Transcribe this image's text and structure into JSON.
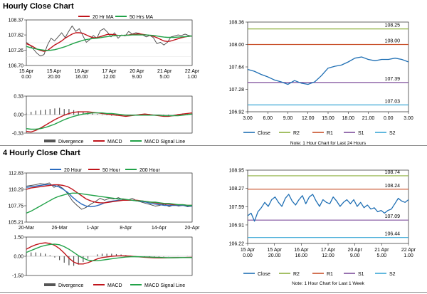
{
  "sections": [
    {
      "title": "Hourly Close Chart"
    },
    {
      "title": "4 Hourly Close Chart"
    }
  ],
  "colors": {
    "close": "#1f6fb4",
    "r2": "#8db03f",
    "r1": "#c8502a",
    "s1": "#7f4f9c",
    "s2": "#3aa7d6",
    "ma_short": "#c0141b",
    "ma_long": "#21a248",
    "ma_extra": "#2a6bbf",
    "divergence": "#555555",
    "macd": "#c0141b",
    "signal": "#21a248"
  },
  "chart_data": [
    {
      "id": "hourly_price",
      "type": "line",
      "legend": [
        "20 Hr MA",
        "50 Hrs MA"
      ],
      "y_ticks": [
        "108.37",
        "107.82",
        "107.26",
        "106.70"
      ],
      "ylim": [
        106.7,
        108.37
      ],
      "x_ticks": [
        [
          "15 Apr",
          "0.00"
        ],
        [
          "15 Apr",
          "20.00"
        ],
        [
          "16 Apr",
          "16.00"
        ],
        [
          "17 Apr",
          "12.00"
        ],
        [
          "20 Apr",
          "9.00"
        ],
        [
          "21 Apr",
          "5.00"
        ],
        [
          "22 Apr",
          "1.00"
        ]
      ],
      "series": [
        {
          "name": "Close",
          "values": [
            107.55,
            107.45,
            107.3,
            107.15,
            107.05,
            107.1,
            107.45,
            107.7,
            107.6,
            107.75,
            107.9,
            107.72,
            107.95,
            108.15,
            107.95,
            108.05,
            107.8,
            107.55,
            107.65,
            107.8,
            107.7,
            107.98,
            108.05,
            107.92,
            107.75,
            107.9,
            107.7,
            107.82,
            107.78,
            107.95,
            107.85,
            107.9,
            107.88,
            107.82,
            107.75,
            107.8,
            107.72,
            107.5,
            107.55,
            107.45,
            107.55,
            107.75,
            107.78,
            107.82,
            107.8,
            107.85,
            107.8,
            107.78
          ]
        },
        {
          "name": "20 Hr MA",
          "values": [
            107.5,
            107.45,
            107.38,
            107.3,
            107.25,
            107.22,
            107.25,
            107.35,
            107.45,
            107.52,
            107.6,
            107.7,
            107.78,
            107.85,
            107.9,
            107.9,
            107.88,
            107.82,
            107.76,
            107.72,
            107.72,
            107.76,
            107.8,
            107.84,
            107.84,
            107.83,
            107.8,
            107.8,
            107.8,
            107.82,
            107.84,
            107.85,
            107.86,
            107.84,
            107.82,
            107.8,
            107.77,
            107.72,
            107.66,
            107.6,
            107.58,
            107.6,
            107.64,
            107.68,
            107.72,
            107.75,
            107.77,
            107.78
          ]
        },
        {
          "name": "50 Hrs MA",
          "values": [
            107.4,
            107.36,
            107.33,
            107.3,
            107.28,
            107.26,
            107.25,
            107.26,
            107.28,
            107.31,
            107.35,
            107.39,
            107.44,
            107.49,
            107.54,
            107.58,
            107.62,
            107.65,
            107.67,
            107.69,
            107.7,
            107.72,
            107.74,
            107.76,
            107.78,
            107.79,
            107.8,
            107.8,
            107.81,
            107.81,
            107.82,
            107.82,
            107.82,
            107.82,
            107.82,
            107.81,
            107.8,
            107.78,
            107.76,
            107.74,
            107.73,
            107.73,
            107.73,
            107.74,
            107.75,
            107.76,
            107.77,
            107.78
          ]
        }
      ]
    },
    {
      "id": "hourly_macd",
      "type": "bar",
      "legend": [
        "Divergence",
        "MACD",
        "MACD Signal Line"
      ],
      "y_ticks": [
        "0.33",
        "0.00",
        "-0.33"
      ],
      "ylim": [
        -0.33,
        0.33
      ],
      "series": [
        {
          "name": "MACD",
          "values": [
            -0.3,
            -0.31,
            -0.28,
            -0.24,
            -0.19,
            -0.14,
            -0.09,
            -0.05,
            -0.01,
            0.02,
            0.04,
            0.05,
            0.05,
            0.05,
            0.04,
            0.03,
            0.02,
            0.01,
            0.0,
            -0.01,
            -0.02,
            -0.03,
            -0.02,
            -0.01,
            0.0,
            0.01,
            0.0,
            -0.01,
            -0.02,
            -0.03,
            -0.03,
            -0.02,
            0.0,
            0.01,
            0.02,
            0.03
          ]
        },
        {
          "name": "MACD Signal Line",
          "values": [
            -0.25,
            -0.26,
            -0.26,
            -0.25,
            -0.23,
            -0.2,
            -0.17,
            -0.13,
            -0.09,
            -0.06,
            -0.03,
            -0.01,
            0.01,
            0.02,
            0.03,
            0.03,
            0.03,
            0.02,
            0.02,
            0.01,
            0.0,
            -0.01,
            -0.01,
            -0.01,
            -0.01,
            -0.01,
            -0.01,
            -0.01,
            -0.01,
            -0.02,
            -0.02,
            -0.02,
            -0.02,
            -0.01,
            0.0,
            0.01
          ]
        },
        {
          "name": "Divergence",
          "values": [
            0.03,
            0.05,
            0.07,
            0.08,
            0.09,
            0.1,
            0.11,
            0.12,
            0.1,
            0.1,
            0.08,
            0.06,
            0.05,
            0.04,
            0.02,
            0.01,
            -0.01,
            -0.01,
            -0.02,
            -0.02,
            -0.02,
            -0.02,
            -0.01,
            -0.01,
            0.01,
            0.01,
            0.01,
            -0.01,
            -0.01,
            -0.01,
            -0.01,
            0.0,
            0.01,
            0.02,
            0.02,
            0.02
          ]
        }
      ]
    },
    {
      "id": "hourly_24h",
      "type": "line",
      "y_ticks": [
        "108.36",
        "108.00",
        "107.64",
        "107.28",
        "106.92"
      ],
      "ylim": [
        106.92,
        108.36
      ],
      "x_ticks": [
        "3.00",
        "6.00",
        "9.00",
        "12.00",
        "15.00",
        "18.00",
        "21.00",
        "0.00",
        "3.00"
      ],
      "levels": [
        {
          "name": "R2",
          "value": 108.25,
          "label": "108.25"
        },
        {
          "name": "R1",
          "value": 108.0,
          "label": "108.00"
        },
        {
          "name": "S1",
          "value": 107.39,
          "label": "107.39"
        },
        {
          "name": "S2",
          "value": 107.03,
          "label": "107.03"
        }
      ],
      "series": [
        {
          "name": "Close",
          "values": [
            107.6,
            107.57,
            107.52,
            107.48,
            107.43,
            107.4,
            107.36,
            107.42,
            107.38,
            107.36,
            107.4,
            107.5,
            107.62,
            107.65,
            107.67,
            107.72,
            107.78,
            107.8,
            107.76,
            107.74,
            107.76,
            107.76,
            107.78,
            107.76,
            107.72
          ]
        }
      ],
      "legend": [
        "Close",
        "R2",
        "R1",
        "S1",
        "S2"
      ],
      "note": "Note: 1 Hour Chart for Last 24 Hours"
    },
    {
      "id": "four_hourly_price",
      "type": "line",
      "legend": [
        "20 Hour",
        "50 Hour",
        "200 Hour"
      ],
      "y_ticks": [
        "112.83",
        "110.29",
        "107.75",
        "105.21"
      ],
      "ylim": [
        105.21,
        112.83
      ],
      "x_ticks": [
        "20-Mar",
        "26-Mar",
        "1-Apr",
        "8-Apr",
        "14-Apr",
        "20-Apr"
      ],
      "series": [
        {
          "name": "Close",
          "values": [
            110.8,
            110.9,
            111.0,
            111.2,
            111.1,
            111.3,
            110.6,
            110.9,
            110.4,
            109.6,
            108.5,
            107.8,
            107.2,
            107.5,
            108.0,
            108.4,
            108.9,
            108.6,
            108.9,
            108.8,
            109.0,
            108.7,
            108.6,
            108.9,
            108.5,
            108.3,
            108.1,
            107.9,
            107.7,
            107.8,
            108.0,
            107.6,
            107.9,
            107.7,
            107.8,
            107.6,
            107.7
          ]
        },
        {
          "name": "20 Hour",
          "values": [
            110.6,
            110.7,
            110.8,
            110.9,
            111.0,
            111.0,
            110.9,
            110.7,
            110.3,
            109.8,
            109.1,
            108.5,
            108.0,
            107.7,
            107.6,
            107.7,
            107.9,
            108.2,
            108.4,
            108.5,
            108.6,
            108.6,
            108.6,
            108.6,
            108.5,
            108.4,
            108.3,
            108.1,
            108.0,
            107.9,
            107.8,
            107.8,
            107.8,
            107.8,
            107.8,
            107.7,
            107.7
          ]
        },
        {
          "name": "50 Hour",
          "values": [
            110.3,
            110.5,
            110.6,
            110.7,
            110.8,
            110.9,
            111.0,
            111.0,
            110.9,
            110.7,
            110.3,
            109.8,
            109.3,
            108.8,
            108.5,
            108.3,
            108.2,
            108.2,
            108.3,
            108.4,
            108.5,
            108.6,
            108.6,
            108.6,
            108.6,
            108.5,
            108.4,
            108.3,
            108.2,
            108.1,
            108.0,
            108.0,
            107.9,
            107.9,
            107.9,
            107.8,
            107.8
          ]
        },
        {
          "name": "200 Hour",
          "values": [
            106.6,
            106.9,
            107.3,
            107.7,
            108.1,
            108.5,
            108.9,
            109.2,
            109.4,
            109.6,
            109.7,
            109.7,
            109.6,
            109.5,
            109.4,
            109.3,
            109.2,
            109.1,
            109.0,
            108.9,
            108.8,
            108.8,
            108.7,
            108.6,
            108.5,
            108.5,
            108.4,
            108.3,
            108.3,
            108.2,
            108.1,
            108.1,
            108.0,
            107.9,
            107.9,
            107.8,
            107.8
          ]
        }
      ]
    },
    {
      "id": "four_hourly_macd",
      "type": "bar",
      "legend": [
        "Divergence",
        "MACD",
        "MACD Signal Line"
      ],
      "y_ticks": [
        "1.50",
        "0.00",
        "-1.50"
      ],
      "ylim": [
        -1.5,
        1.5
      ],
      "series": [
        {
          "name": "MACD",
          "values": [
            0.55,
            0.75,
            0.9,
            1.0,
            1.05,
            1.0,
            0.85,
            0.6,
            0.25,
            -0.15,
            -0.45,
            -0.6,
            -0.6,
            -0.5,
            -0.35,
            -0.2,
            -0.1,
            -0.05,
            0.0,
            0.02,
            0.04,
            0.03,
            0.01,
            -0.02,
            -0.05,
            -0.08,
            -0.1,
            -0.12,
            -0.13,
            -0.13,
            -0.12,
            -0.11,
            -0.1,
            -0.1,
            -0.09,
            -0.08
          ]
        },
        {
          "name": "MACD Signal Line",
          "values": [
            0.3,
            0.45,
            0.6,
            0.75,
            0.85,
            0.92,
            0.95,
            0.9,
            0.75,
            0.55,
            0.3,
            0.05,
            -0.15,
            -0.3,
            -0.35,
            -0.35,
            -0.3,
            -0.25,
            -0.2,
            -0.15,
            -0.1,
            -0.06,
            -0.04,
            -0.03,
            -0.04,
            -0.05,
            -0.06,
            -0.08,
            -0.09,
            -0.1,
            -0.11,
            -0.11,
            -0.11,
            -0.1,
            -0.1,
            -0.1
          ]
        },
        {
          "name": "Divergence",
          "values": [
            0.25,
            0.3,
            0.3,
            0.25,
            0.2,
            0.08,
            -0.1,
            -0.3,
            -0.5,
            -0.7,
            -0.75,
            -0.65,
            -0.45,
            -0.2,
            0.0,
            0.15,
            0.2,
            0.2,
            0.2,
            0.17,
            0.14,
            0.09,
            0.05,
            0.01,
            -0.01,
            -0.03,
            -0.04,
            -0.04,
            -0.04,
            -0.03,
            -0.01,
            0.0,
            0.01,
            0.0,
            0.01,
            0.02
          ]
        }
      ]
    },
    {
      "id": "four_hourly_week",
      "type": "line",
      "y_ticks": [
        "108.95",
        "108.27",
        "107.59",
        "106.91",
        "106.22"
      ],
      "ylim": [
        106.22,
        108.95
      ],
      "x_ticks": [
        [
          "15 Apr",
          "0.00"
        ],
        [
          "15 Apr",
          "20.00"
        ],
        [
          "16 Apr",
          "16.00"
        ],
        [
          "17 Apr",
          "12.00"
        ],
        [
          "20 Apr",
          "9.00"
        ],
        [
          "21 Apr",
          "5.00"
        ],
        [
          "22 Apr",
          "1.00"
        ]
      ],
      "levels": [
        {
          "name": "R2",
          "value": 108.74,
          "label": "108.74"
        },
        {
          "name": "R1",
          "value": 108.24,
          "label": "108.24"
        },
        {
          "name": "S1",
          "value": 107.09,
          "label": "107.09"
        },
        {
          "name": "S2",
          "value": 106.44,
          "label": "106.44"
        }
      ],
      "series": [
        {
          "name": "Close",
          "values": [
            107.25,
            107.35,
            107.05,
            107.4,
            107.55,
            107.75,
            107.6,
            107.85,
            107.95,
            107.75,
            107.6,
            107.9,
            108.05,
            107.8,
            107.65,
            107.85,
            108.0,
            107.7,
            107.95,
            108.05,
            107.8,
            107.6,
            107.85,
            107.75,
            107.7,
            107.95,
            107.8,
            107.6,
            107.75,
            107.85,
            107.7,
            107.85,
            107.6,
            107.75,
            107.55,
            107.65,
            107.5,
            107.55,
            107.4,
            107.45,
            107.35,
            107.45,
            107.5,
            107.7,
            107.9,
            107.8,
            107.75,
            107.85
          ]
        }
      ],
      "legend": [
        "Close",
        "R2",
        "R1",
        "S1",
        "S2"
      ],
      "note": "Note: 1 Hour Chart for Last 1 Week"
    }
  ]
}
